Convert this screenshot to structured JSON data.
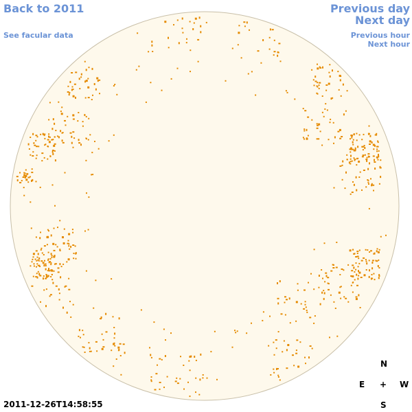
{
  "nav": {
    "back": "Back to 2011",
    "facular": "See facular data",
    "previous_day": "Previous day",
    "next_day": "Next day",
    "previous_hour": "Previous hour",
    "next_hour": "Next hour"
  },
  "compass": {
    "north": "N",
    "east": "E",
    "center": "+",
    "west": "W",
    "south": "S"
  },
  "timestamp": "2011-12-26T14:58:55",
  "colors": {
    "disk_fill": "#fef9ec",
    "disk_stroke": "#c8bfa8",
    "faculae": "#e58a00",
    "link": "#6b93d6"
  }
}
